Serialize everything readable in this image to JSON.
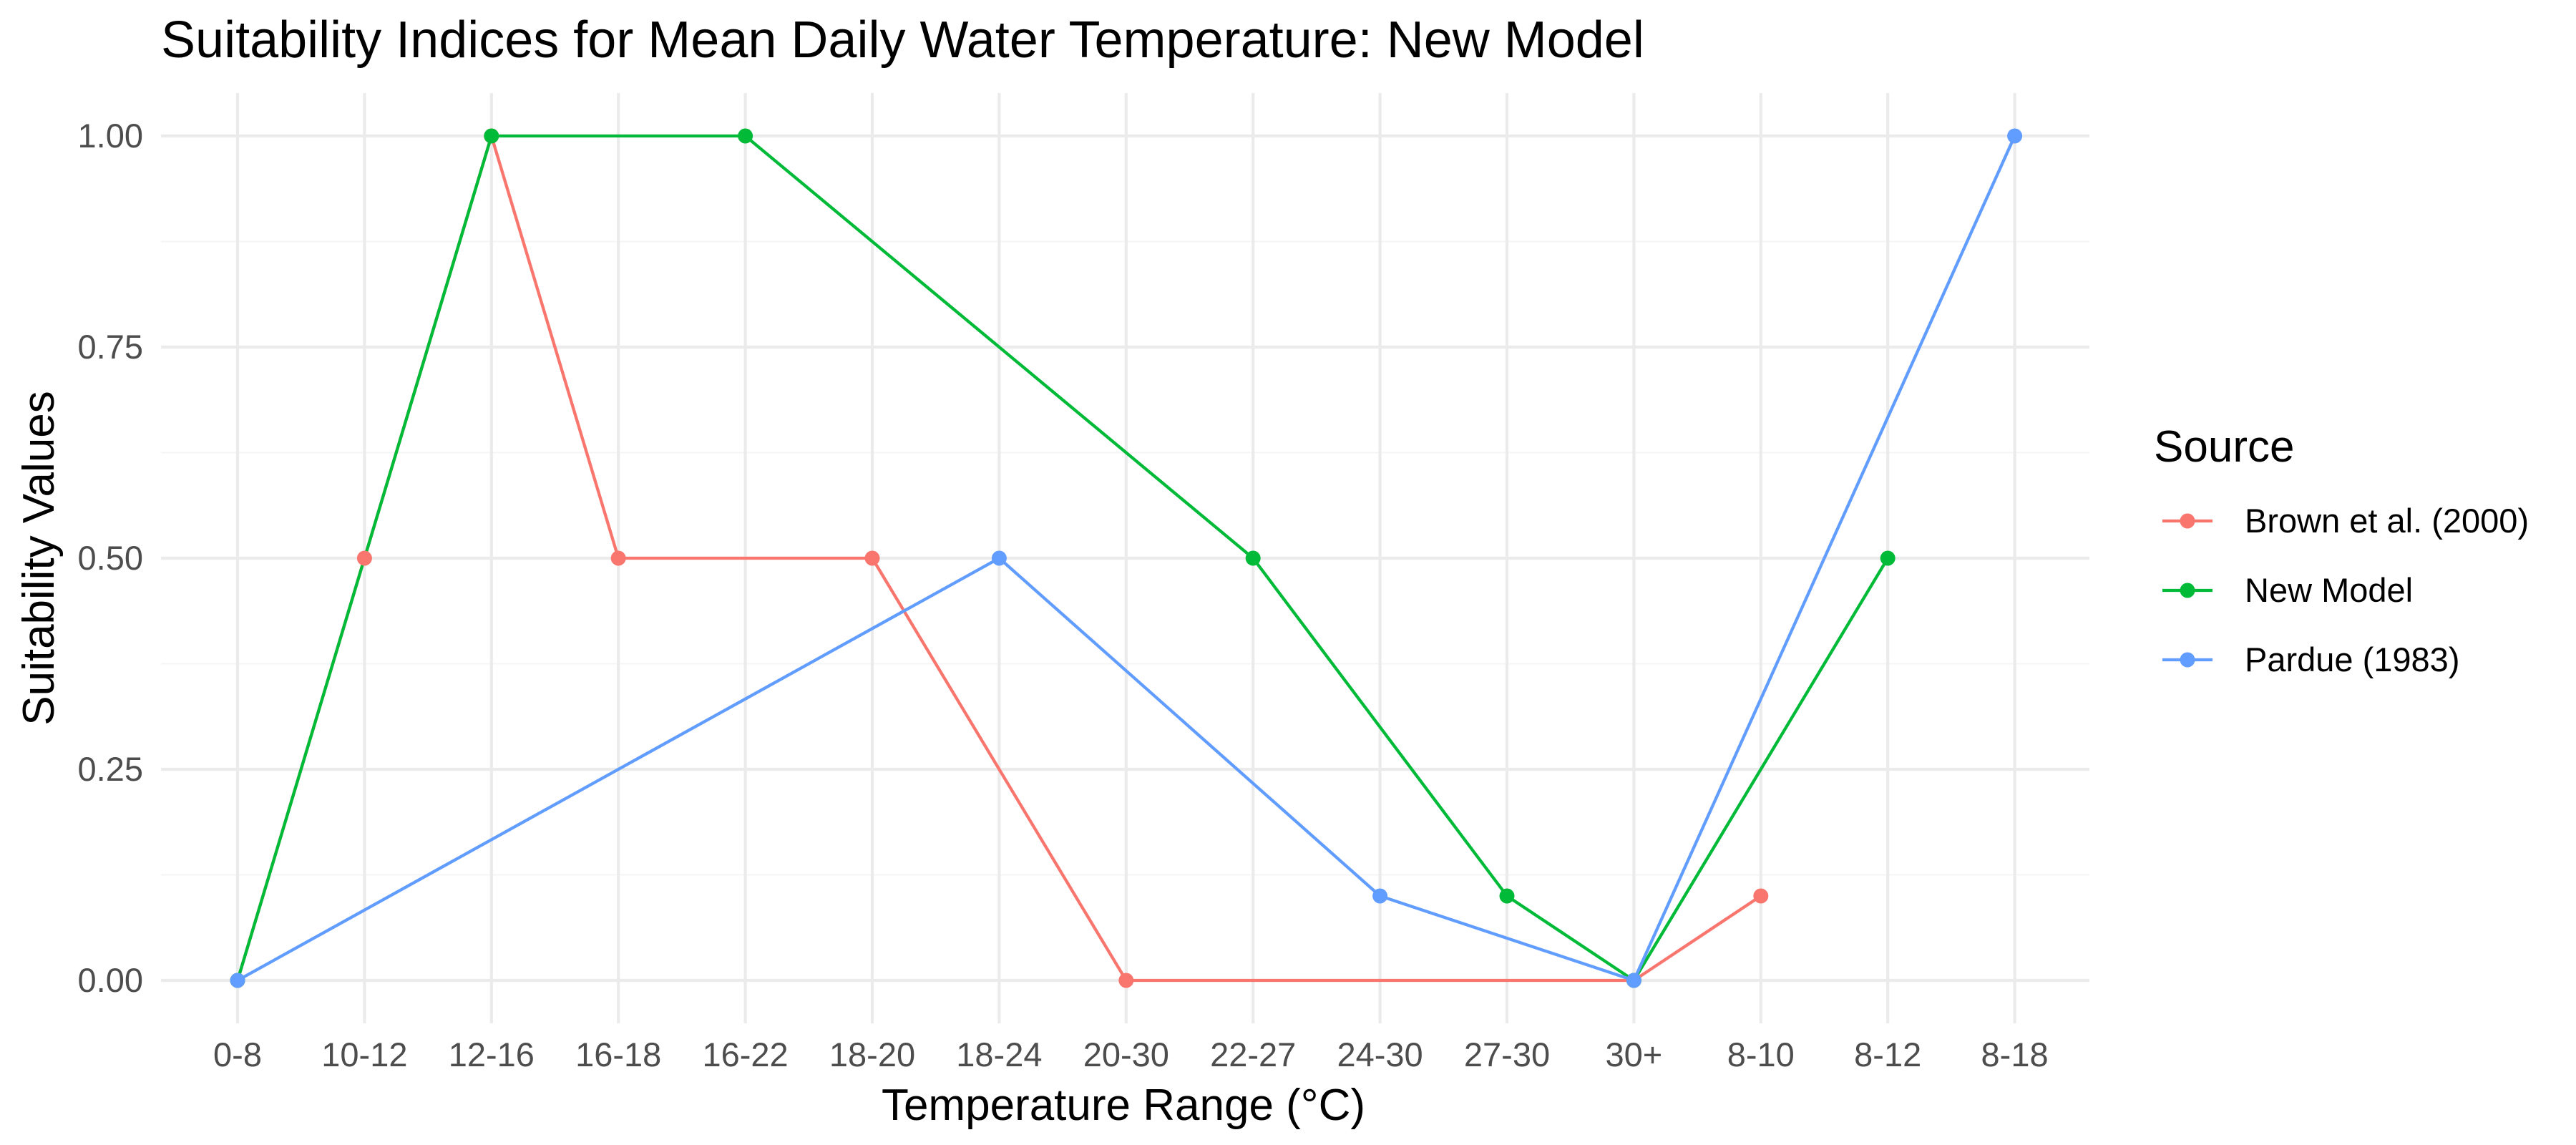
{
  "chart_data": {
    "type": "line",
    "title": "Suitability Indices for Mean Daily Water Temperature: New Model",
    "xlabel": "Temperature Range (°C)",
    "ylabel": "Suitability Values",
    "categories": [
      "0-8",
      "10-12",
      "12-16",
      "16-18",
      "16-22",
      "18-20",
      "18-24",
      "20-30",
      "22-27",
      "24-30",
      "27-30",
      "30+",
      "8-10",
      "8-12",
      "8-18"
    ],
    "ylim": [
      0,
      1
    ],
    "y_ticks": [
      "0.00",
      "0.25",
      "0.50",
      "0.75",
      "1.00"
    ],
    "grid": true,
    "legend": {
      "title": "Source",
      "position": "right"
    },
    "series": [
      {
        "name": "Brown et al. (2000)",
        "color": "#F8766D",
        "points": [
          {
            "x": "0-8",
            "y": 0.0
          },
          {
            "x": "10-12",
            "y": 0.5
          },
          {
            "x": "12-16",
            "y": 1.0
          },
          {
            "x": "16-18",
            "y": 0.5
          },
          {
            "x": "18-20",
            "y": 0.5
          },
          {
            "x": "20-30",
            "y": 0.0
          },
          {
            "x": "30+",
            "y": 0.0
          },
          {
            "x": "8-10",
            "y": 0.1
          }
        ]
      },
      {
        "name": "New Model",
        "color": "#00BA38",
        "points": [
          {
            "x": "0-8",
            "y": 0.0
          },
          {
            "x": "12-16",
            "y": 1.0
          },
          {
            "x": "16-22",
            "y": 1.0
          },
          {
            "x": "22-27",
            "y": 0.5
          },
          {
            "x": "27-30",
            "y": 0.1
          },
          {
            "x": "30+",
            "y": 0.0
          },
          {
            "x": "8-12",
            "y": 0.5
          }
        ]
      },
      {
        "name": "Pardue (1983)",
        "color": "#619CFF",
        "points": [
          {
            "x": "0-8",
            "y": 0.0
          },
          {
            "x": "18-24",
            "y": 0.5
          },
          {
            "x": "24-30",
            "y": 0.1
          },
          {
            "x": "30+",
            "y": 0.0
          },
          {
            "x": "8-18",
            "y": 1.0
          }
        ]
      }
    ]
  }
}
